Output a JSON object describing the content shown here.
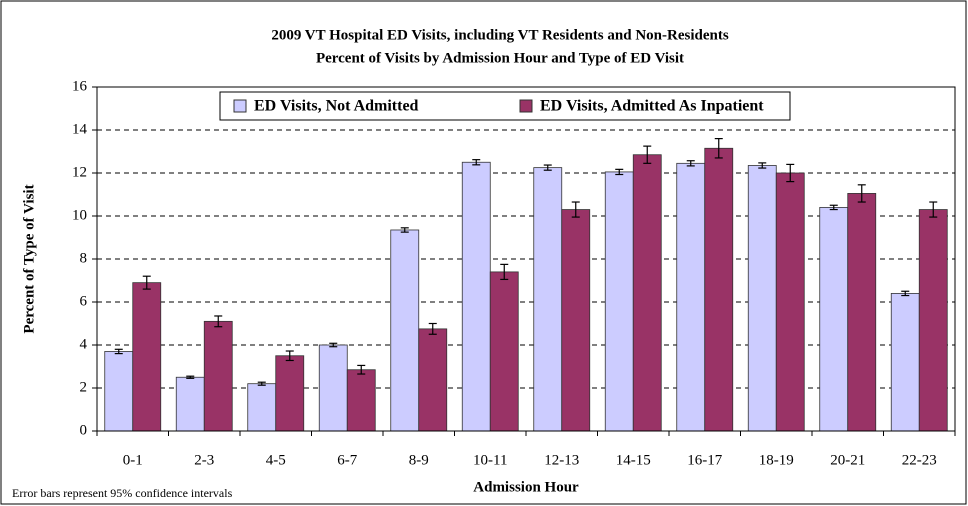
{
  "chart_data": {
    "type": "bar",
    "title": "2009 VT Hospital ED Visits, including VT Residents and Non-Residents",
    "subtitle": "Percent of Visits by Admission Hour and Type of ED Visit",
    "x_label": "Admission Hour",
    "y_label": "Percent of Type of Visit",
    "note": "Error bars represent 95% confidence intervals",
    "categories": [
      "0-1",
      "2-3",
      "4-5",
      "6-7",
      "8-9",
      "10-11",
      "12-13",
      "14-15",
      "16-17",
      "18-19",
      "20-21",
      "22-23"
    ],
    "series": [
      {
        "name": "ED Visits, Not Admitted",
        "color": "#ccccff",
        "values": [
          3.7,
          2.5,
          2.2,
          4.0,
          9.35,
          12.5,
          12.25,
          12.05,
          12.45,
          12.35,
          10.4,
          6.4
        ],
        "errors": [
          0.1,
          0.05,
          0.07,
          0.08,
          0.1,
          0.12,
          0.12,
          0.12,
          0.12,
          0.12,
          0.1,
          0.1
        ]
      },
      {
        "name": "ED Visits, Admitted As Inpatient",
        "color": "#993366",
        "values": [
          6.9,
          5.1,
          3.5,
          2.85,
          4.75,
          7.4,
          10.3,
          12.85,
          13.15,
          12.0,
          11.05,
          10.3
        ],
        "errors": [
          0.3,
          0.25,
          0.22,
          0.2,
          0.25,
          0.35,
          0.35,
          0.4,
          0.45,
          0.4,
          0.4,
          0.35
        ]
      }
    ],
    "ylim": [
      0,
      16
    ],
    "yticks": [
      0,
      2,
      4,
      6,
      8,
      10,
      12,
      14,
      16
    ],
    "grid": true,
    "legend": "top"
  }
}
